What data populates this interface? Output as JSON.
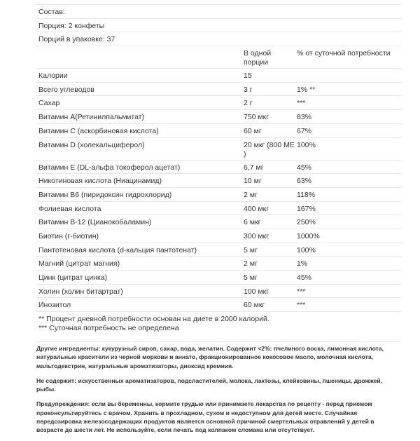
{
  "info": [
    "Состав:",
    "Порция: 2 конфеты",
    "Порций в упаковке: 37"
  ],
  "header": {
    "per_serving": "В одной порции",
    "daily": "% от суточной потребности"
  },
  "rows": [
    {
      "name": "Калории",
      "amount": "15",
      "daily": ""
    },
    {
      "name": "Всего углеводов",
      "amount": "3 г",
      "daily": "1% **"
    },
    {
      "name": "Сахар",
      "amount": "2 г",
      "daily": "***"
    },
    {
      "name": "Витамин A(Ретинилпальмитат)",
      "amount": "750 мкг",
      "daily": "83%"
    },
    {
      "name": "Витамин C (аскорбиновая кислота)",
      "amount": "60 мг",
      "daily": "67%"
    },
    {
      "name": "Витамин D (холекальциферол)",
      "amount": "20 мкг (800 МЕ )",
      "daily": "100%"
    },
    {
      "name": "Витамин E (DL-альфа токоферол ацетат)",
      "amount": "6,7 мг",
      "daily": "45%"
    },
    {
      "name": "Никотиновая кислота (Ниацинамид)",
      "amount": "10 мг",
      "daily": "63%"
    },
    {
      "name": "Витамин B6 (пиридоксин гидрохлорид)",
      "amount": "2 мг",
      "daily": "118%"
    },
    {
      "name": "Фолиевая кислота",
      "amount": "400 мкг",
      "daily": "167%"
    },
    {
      "name": "Витамин B-12 (Цианокобаламин)",
      "amount": "6 мкг",
      "daily": "250%"
    },
    {
      "name": "Биотин (г-биотин)",
      "amount": "300 мкг",
      "daily": "1000%"
    },
    {
      "name": "Пантотеновая кислота (d-кальция пантотенат)",
      "amount": "5 мг",
      "daily": "100%"
    },
    {
      "name": "Магний (цитрат магния)",
      "amount": "2 мг",
      "daily": "1%"
    },
    {
      "name": "Цинк (цитрат цинка)",
      "amount": "5 мг",
      "daily": "45%"
    },
    {
      "name": "Холин (холин битартрат)",
      "amount": "100 мкг",
      "daily": "***"
    },
    {
      "name": "Инозитол",
      "amount": "60 мкг",
      "daily": "***"
    }
  ],
  "footnotes": [
    "** Процент дневной потребности основан на диете в 2000 калорий.",
    "*** Суточная потребность не определена"
  ],
  "paragraphs": [
    "Другие ингредиенты: кукурузный сироп, сахар, вода, желатин. Содержит <2%: пчелиного воска, лимонная кислота, натуральные красители из черной моркови и аннато, фракционированное кокосовое масло, молочная кислота, мальтодекстрин, натуральные ароматизаторы, диоксид кремния.",
    "Не содержит: искусственных ароматизаторов, подсластителей, молока, лактозы, клейковины, пшеницы, дрожжей, рыбы.",
    "Предупреждения: если вы беременны, кормите грудью или принимаете лекарства по рецепту - перед приемом проконсультируйтесь с врачом. Хранить в прохладном, сухом и недоступном для детей месте. Случайная передозировка железосодержащих продуктов является основной причиной смертельных отравлений у детей в возрасте до шести лет. Не используйте, если печать под колпаком сломана или отсутствует."
  ]
}
